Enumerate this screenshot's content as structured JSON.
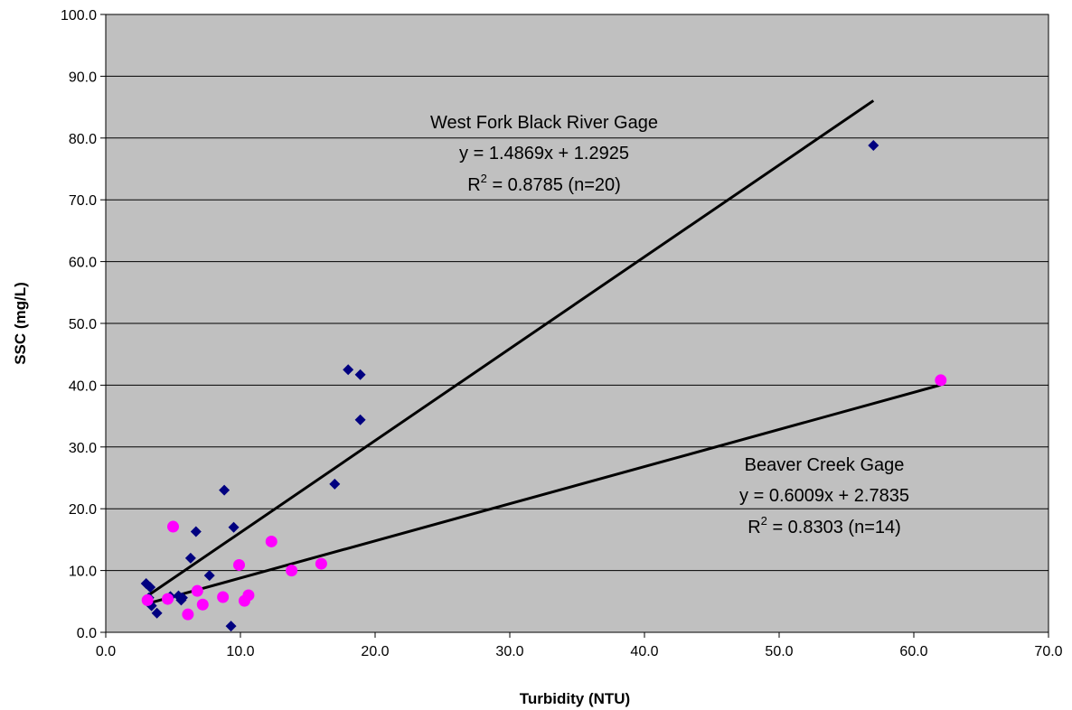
{
  "chart_data": {
    "type": "scatter",
    "title": "",
    "xlabel": "Turbidity (NTU)",
    "ylabel": "SSC (mg/L)",
    "xlim": [
      0,
      70
    ],
    "ylim": [
      0,
      100
    ],
    "x_ticks": [
      "0.0",
      "10.0",
      "20.0",
      "30.0",
      "40.0",
      "50.0",
      "60.0",
      "70.0"
    ],
    "y_ticks": [
      "0.0",
      "10.0",
      "20.0",
      "30.0",
      "40.0",
      "50.0",
      "60.0",
      "70.0",
      "80.0",
      "90.0",
      "100.0"
    ],
    "grid": "horizontal",
    "legend": "none",
    "colors": {
      "plot_bg": "#c0c0c0",
      "west_fork": "#000080",
      "beaver_creek": "#ff00ff",
      "trendline": "#000000",
      "grid": "#000000"
    },
    "series": [
      {
        "marker": "diamond",
        "points": [
          [
            3.0,
            7.9
          ],
          [
            3.3,
            7.3
          ],
          [
            3.4,
            4.3
          ],
          [
            3.8,
            3.1
          ],
          [
            5.4,
            5.9
          ],
          [
            5.6,
            5.2
          ],
          [
            6.3,
            12.0
          ],
          [
            6.7,
            16.3
          ],
          [
            7.7,
            9.2
          ],
          [
            8.8,
            23.0
          ],
          [
            9.3,
            1.0
          ],
          [
            9.5,
            17.0
          ],
          [
            17.0,
            24.0
          ],
          [
            18.0,
            42.5
          ],
          [
            18.9,
            41.7
          ],
          [
            18.9,
            34.4
          ],
          [
            57.0,
            78.8
          ],
          [
            4.8,
            5.8
          ],
          [
            3.2,
            5.6
          ],
          [
            5.7,
            5.6
          ]
        ]
      },
      {
        "marker": "circle",
        "points": [
          [
            3.1,
            5.2
          ],
          [
            4.6,
            5.4
          ],
          [
            5.0,
            17.1
          ],
          [
            6.1,
            2.9
          ],
          [
            6.8,
            6.7
          ],
          [
            7.2,
            4.5
          ],
          [
            8.7,
            5.7
          ],
          [
            9.9,
            10.9
          ],
          [
            10.3,
            5.1
          ],
          [
            10.6,
            6.0
          ],
          [
            12.3,
            14.7
          ],
          [
            13.8,
            10.0
          ],
          [
            16.0,
            11.1
          ],
          [
            62.0,
            40.8
          ]
        ]
      }
    ],
    "trendlines": [
      {
        "x_range": [
          3.0,
          57.0
        ],
        "slope": 1.4869,
        "intercept": 1.2925
      },
      {
        "x_range": [
          3.1,
          62.0
        ],
        "slope": 0.6009,
        "intercept": 2.7835
      }
    ],
    "annotations": [
      {
        "title": "West Fork Black River Gage",
        "equation": "y = 1.4869x + 1.2925",
        "r2_prefix": "R",
        "r2_sup": "2",
        "r2_suffix": " = 0.8785 (n=20)"
      },
      {
        "title": "Beaver Creek Gage",
        "equation": "y = 0.6009x + 2.7835",
        "r2_prefix": "R",
        "r2_sup": "2",
        "r2_suffix": " = 0.8303 (n=14)"
      }
    ]
  }
}
